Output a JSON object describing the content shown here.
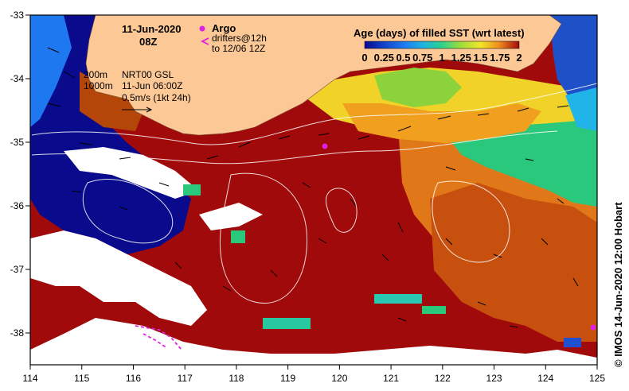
{
  "title": {
    "date": "11-Jun-2020",
    "hour": "08Z"
  },
  "legend": {
    "argo_label": "Argo",
    "drifters_line1": "drifters@12h",
    "drifters_line2": "to 12/06 12Z",
    "colorbar_title": "Age (days) of filled SST (wrt latest)",
    "colorbar_ticks": [
      "0",
      "0.25",
      "0.5",
      "0.75",
      "1",
      "1.25",
      "1.5",
      "1.75",
      "2"
    ]
  },
  "annotations": {
    "isobath_200": "200m",
    "isobath_1000": "1000m",
    "product": "NRT00 GSL",
    "product_time": "11-Jun 06:00Z",
    "vector_scale": "0.5m/s (1kt 24h)"
  },
  "axes": {
    "x_ticks": [
      "114",
      "115",
      "116",
      "117",
      "118",
      "119",
      "120",
      "121",
      "122",
      "123",
      "124",
      "125"
    ],
    "y_ticks": [
      "-33",
      "-34",
      "-35",
      "-36",
      "-37",
      "-38"
    ]
  },
  "credit": "© IMOS 14-Jun-2020 12:00 Hobart",
  "colors": {
    "land": "#fcc896",
    "age_0": "#0a0a8c",
    "age_0_5": "#1e78f0",
    "age_1": "#2ad28c",
    "age_1_5": "#f0e628",
    "age_1_75": "#f08c1e",
    "age_2": "#a00a0a",
    "argo": "#e020e0",
    "drifter": "#e020e0"
  }
}
